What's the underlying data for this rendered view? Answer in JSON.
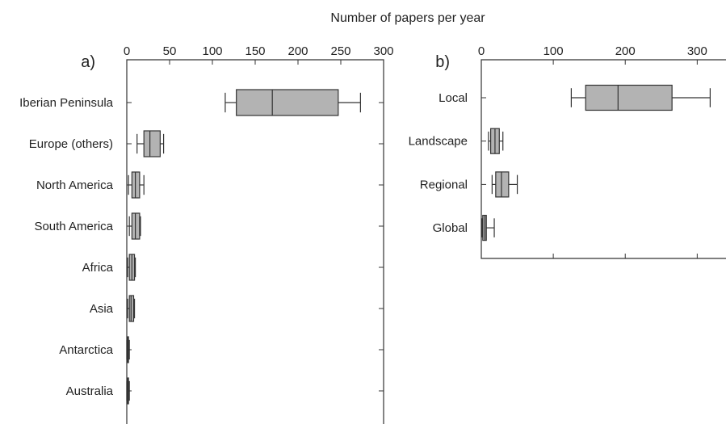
{
  "figure": {
    "title": "Number of papers per year"
  },
  "colors": {
    "box_fill": "#b3b3b3",
    "stroke": "#333333",
    "background": "#ffffff"
  },
  "chart_data": [
    {
      "type": "boxplot",
      "panel_label": "a)",
      "orientation": "horizontal",
      "xlim": [
        0,
        300
      ],
      "xticks": [
        0,
        50,
        100,
        150,
        200,
        250,
        300
      ],
      "grid": false,
      "categories": [
        "Iberian Peninsula",
        "Europe (others)",
        "North America",
        "South America",
        "Africa",
        "Asia",
        "Antarctica",
        "Australia"
      ],
      "boxes": [
        {
          "min": 115,
          "q1": 128,
          "median": 170,
          "q3": 247,
          "max": 273
        },
        {
          "min": 12,
          "q1": 20,
          "median": 27,
          "q3": 39,
          "max": 43
        },
        {
          "min": 2,
          "q1": 6,
          "median": 10,
          "q3": 15,
          "max": 20
        },
        {
          "min": 3,
          "q1": 6,
          "median": 10,
          "q3": 15,
          "max": 16
        },
        {
          "min": 1,
          "q1": 3,
          "median": 6,
          "q3": 9,
          "max": 10
        },
        {
          "min": 1,
          "q1": 3,
          "median": 5,
          "q3": 8,
          "max": 9
        },
        {
          "min": 0,
          "q1": 1,
          "median": 1.5,
          "q3": 2,
          "max": 3
        },
        {
          "min": 0,
          "q1": 1,
          "median": 1.5,
          "q3": 2,
          "max": 3
        }
      ]
    },
    {
      "type": "boxplot",
      "panel_label": "b)",
      "orientation": "horizontal",
      "xlim": [
        0,
        340
      ],
      "xticks": [
        0,
        100,
        200,
        300
      ],
      "grid": false,
      "categories": [
        "Local",
        "Landscape",
        "Regional",
        "Global"
      ],
      "boxes": [
        {
          "min": 125,
          "q1": 145,
          "median": 190,
          "q3": 265,
          "max": 318
        },
        {
          "min": 10,
          "q1": 13,
          "median": 19,
          "q3": 25,
          "max": 30
        },
        {
          "min": 15,
          "q1": 20,
          "median": 28,
          "q3": 38,
          "max": 50
        },
        {
          "min": 1,
          "q1": 2,
          "median": 5,
          "q3": 7,
          "max": 18
        }
      ]
    }
  ]
}
